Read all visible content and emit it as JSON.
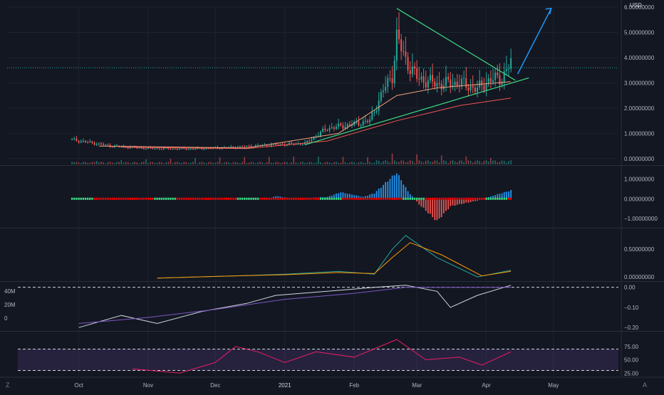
{
  "chart_data": [
    {
      "type": "candlestick",
      "title": "",
      "currency": "USD",
      "x_tick_labels": [
        "Oct",
        "Nov",
        "Dec",
        "2021",
        "Feb",
        "Mar",
        "Apr",
        "May"
      ],
      "y_tick_labels": [
        "6.00000000",
        "5.00000000",
        "4.00000000",
        "3.00000000",
        "2.00000000",
        "1.00000000",
        "0.00000000"
      ],
      "ylim": [
        -0.2,
        6.0
      ],
      "last_price_level": 3.6,
      "price_points": [
        {
          "date": "2020-09-28",
          "price": 0.75
        },
        {
          "date": "2020-10-15",
          "price": 0.5
        },
        {
          "date": "2020-11-01",
          "price": 0.4
        },
        {
          "date": "2020-11-20",
          "price": 0.38
        },
        {
          "date": "2020-12-10",
          "price": 0.45
        },
        {
          "date": "2020-12-28",
          "price": 0.55
        },
        {
          "date": "2021-01-10",
          "price": 0.6
        },
        {
          "date": "2021-01-20",
          "price": 1.2
        },
        {
          "date": "2021-01-31",
          "price": 1.35
        },
        {
          "date": "2021-02-08",
          "price": 1.5
        },
        {
          "date": "2021-02-14",
          "price": 2.7
        },
        {
          "date": "2021-02-18",
          "price": 3.3
        },
        {
          "date": "2021-02-20",
          "price": 4.8
        },
        {
          "date": "2021-02-24",
          "price": 3.9
        },
        {
          "date": "2021-03-01",
          "price": 3.2
        },
        {
          "date": "2021-03-10",
          "price": 2.95
        },
        {
          "date": "2021-03-20",
          "price": 3.0
        },
        {
          "date": "2021-03-28",
          "price": 2.75
        },
        {
          "date": "2021-04-02",
          "price": 3.1
        },
        {
          "date": "2021-04-08",
          "price": 3.2
        },
        {
          "date": "2021-04-12",
          "price": 3.8
        }
      ],
      "ma_slow": [
        {
          "date": "2020-10-20",
          "price": 0.45
        },
        {
          "date": "2020-12-15",
          "price": 0.4
        },
        {
          "date": "2021-01-20",
          "price": 0.7
        },
        {
          "date": "2021-02-20",
          "price": 1.5
        },
        {
          "date": "2021-03-20",
          "price": 2.1
        },
        {
          "date": "2021-04-12",
          "price": 2.4
        }
      ],
      "ma_fast": [
        {
          "date": "2020-10-10",
          "price": 0.5
        },
        {
          "date": "2020-12-15",
          "price": 0.42
        },
        {
          "date": "2021-01-25",
          "price": 1.0
        },
        {
          "date": "2021-02-20",
          "price": 2.5
        },
        {
          "date": "2021-03-10",
          "price": 2.8
        },
        {
          "date": "2021-04-12",
          "price": 3.05
        }
      ],
      "drawings": {
        "resistance_line": [
          {
            "date": "2021-02-20",
            "price": 5.95
          },
          {
            "date": "2021-04-14",
            "price": 3.1
          }
        ],
        "support_line": [
          {
            "date": "2021-01-10",
            "price": 0.55
          },
          {
            "date": "2021-04-20",
            "price": 3.2
          }
        ],
        "projection_arrow": [
          {
            "date": "2021-04-15",
            "price": 3.35
          },
          {
            "date": "2021-04-30",
            "price": 5.95
          }
        ]
      },
      "colors": {
        "up": "#26a69a",
        "down": "#ef5350",
        "ma_slow": "#ef5350",
        "ma_fast": "#f0a07a",
        "resistance": "#3ddc84",
        "support": "#3ddc84",
        "arrow": "#2196f3",
        "volume_up": "#26a69a",
        "volume_down": "#ef5350"
      }
    },
    {
      "type": "histogram",
      "title": "",
      "y_tick_labels": [
        "1.00000000",
        "0.00000000",
        "−1.00000000"
      ],
      "ylim": [
        -1.4,
        1.6
      ],
      "points": [
        {
          "date": "2020-09-28",
          "value": 0.0
        },
        {
          "date": "2020-12-25",
          "value": 0.0
        },
        {
          "date": "2020-12-28",
          "value": 0.15
        },
        {
          "date": "2021-01-05",
          "value": 0.0
        },
        {
          "date": "2021-01-20",
          "value": 0.1
        },
        {
          "date": "2021-01-26",
          "value": 0.35
        },
        {
          "date": "2021-02-05",
          "value": 0.1
        },
        {
          "date": "2021-02-10",
          "value": 0.3
        },
        {
          "date": "2021-02-20",
          "value": 1.4
        },
        {
          "date": "2021-02-25",
          "value": 0.4
        },
        {
          "date": "2021-03-02",
          "value": -0.3
        },
        {
          "date": "2021-03-10",
          "value": -1.2
        },
        {
          "date": "2021-03-16",
          "value": -0.4
        },
        {
          "date": "2021-03-28",
          "value": -0.1
        },
        {
          "date": "2021-04-05",
          "value": 0.2
        },
        {
          "date": "2021-04-12",
          "value": 0.45
        }
      ],
      "colors": {
        "positive": "#2196f3",
        "negative": "#ef5350",
        "signal_on": "#3ddc84",
        "signal_off": "#ef0000"
      }
    },
    {
      "type": "line",
      "title": "",
      "y_tick_labels": [
        "0.50000000",
        "0.00000000"
      ],
      "ylim": [
        -0.05,
        0.85
      ],
      "series": [
        {
          "color": "#26a69a",
          "points": [
            {
              "date": "2020-11-05",
              "value": -0.02
            },
            {
              "date": "2020-12-10",
              "value": 0.02
            },
            {
              "date": "2021-01-01",
              "value": 0.05
            },
            {
              "date": "2021-01-25",
              "value": 0.1
            },
            {
              "date": "2021-02-10",
              "value": 0.05
            },
            {
              "date": "2021-02-18",
              "value": 0.5
            },
            {
              "date": "2021-02-24",
              "value": 0.75
            },
            {
              "date": "2021-03-10",
              "value": 0.35
            },
            {
              "date": "2021-03-28",
              "value": 0.0
            },
            {
              "date": "2021-04-12",
              "value": 0.12
            }
          ]
        },
        {
          "color": "#ff9800",
          "points": [
            {
              "date": "2020-11-05",
              "value": -0.02
            },
            {
              "date": "2020-12-10",
              "value": 0.02
            },
            {
              "date": "2021-01-01",
              "value": 0.04
            },
            {
              "date": "2021-01-25",
              "value": 0.08
            },
            {
              "date": "2021-02-10",
              "value": 0.06
            },
            {
              "date": "2021-02-18",
              "value": 0.35
            },
            {
              "date": "2021-02-26",
              "value": 0.62
            },
            {
              "date": "2021-03-12",
              "value": 0.4
            },
            {
              "date": "2021-03-30",
              "value": 0.02
            },
            {
              "date": "2021-04-12",
              "value": 0.1
            }
          ]
        }
      ]
    },
    {
      "type": "line",
      "title": "",
      "y_tick_labels_left": [
        "40M",
        "20M",
        "0"
      ],
      "y_tick_labels_right": [
        "0.00",
        "−0.10",
        "−0.20"
      ],
      "ylim": [
        -0.21,
        0.02
      ],
      "zero_line": 0.0,
      "series": [
        {
          "color": "#d1d4dc",
          "points": [
            {
              "date": "2020-10-01",
              "value": -0.2
            },
            {
              "date": "2020-10-20",
              "value": -0.14
            },
            {
              "date": "2020-11-05",
              "value": -0.18
            },
            {
              "date": "2020-11-25",
              "value": -0.12
            },
            {
              "date": "2020-12-15",
              "value": -0.08
            },
            {
              "date": "2020-12-28",
              "value": -0.04
            },
            {
              "date": "2021-01-20",
              "value": -0.02
            },
            {
              "date": "2021-02-10",
              "value": 0.0
            },
            {
              "date": "2021-02-24",
              "value": 0.01
            },
            {
              "date": "2021-03-10",
              "value": -0.02
            },
            {
              "date": "2021-03-16",
              "value": -0.1
            },
            {
              "date": "2021-03-28",
              "value": -0.04
            },
            {
              "date": "2021-04-12",
              "value": 0.01
            }
          ]
        },
        {
          "color": "#7e57c2",
          "points": [
            {
              "date": "2020-10-01",
              "value": -0.18
            },
            {
              "date": "2020-11-01",
              "value": -0.15
            },
            {
              "date": "2020-12-01",
              "value": -0.11
            },
            {
              "date": "2021-01-01",
              "value": -0.06
            },
            {
              "date": "2021-02-01",
              "value": -0.03
            },
            {
              "date": "2021-02-24",
              "value": 0.0
            },
            {
              "date": "2021-04-12",
              "value": 0.0
            }
          ]
        }
      ]
    },
    {
      "type": "line",
      "title": "",
      "y_tick_labels": [
        "75.00",
        "50.00",
        "25.00"
      ],
      "ylim": [
        20,
        100
      ],
      "band": [
        30,
        70
      ],
      "series": [
        {
          "color": "#e91e63",
          "points": [
            {
              "date": "2020-10-25",
              "value": 33
            },
            {
              "date": "2020-11-15",
              "value": 25
            },
            {
              "date": "2020-12-01",
              "value": 45
            },
            {
              "date": "2020-12-10",
              "value": 75
            },
            {
              "date": "2020-12-20",
              "value": 65
            },
            {
              "date": "2021-01-01",
              "value": 45
            },
            {
              "date": "2021-01-15",
              "value": 65
            },
            {
              "date": "2021-02-01",
              "value": 55
            },
            {
              "date": "2021-02-20",
              "value": 88
            },
            {
              "date": "2021-03-05",
              "value": 50
            },
            {
              "date": "2021-03-20",
              "value": 55
            },
            {
              "date": "2021-03-30",
              "value": 40
            },
            {
              "date": "2021-04-12",
              "value": 65
            }
          ]
        }
      ]
    }
  ],
  "panel_order": [
    "price",
    "histogram",
    "oscillator",
    "flow",
    "rsi"
  ],
  "corner_left": "Z",
  "corner_right": "A",
  "theme": {
    "background": "#131722",
    "grid": "#1e222d",
    "divider": "#2a2e39",
    "axis_text": "#b2b5be"
  }
}
